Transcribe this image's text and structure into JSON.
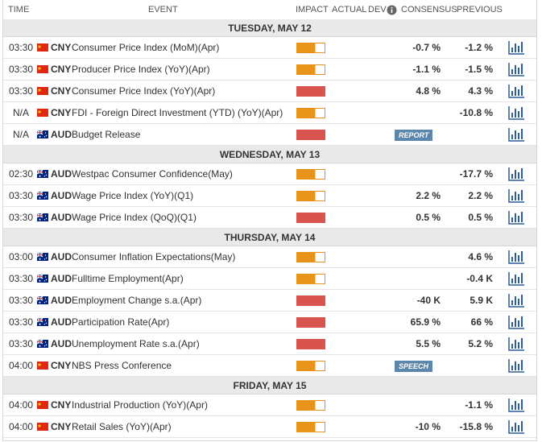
{
  "header": {
    "time": "TIME",
    "event": "EVENT",
    "impact": "IMPACT",
    "actual": "ACTUAL",
    "dev": "DEV",
    "consensus": "CONSENSUS",
    "previous": "PREVIOUS"
  },
  "days": [
    {
      "label": "TUESDAY, MAY 12",
      "rows": [
        {
          "time": "03:30",
          "flag": "cn",
          "currency": "CNY",
          "event": "Consumer Price Index (MoM)(Apr)",
          "impact": "medium",
          "consensus": "-0.7 %",
          "previous": "-1.2 %"
        },
        {
          "time": "03:30",
          "flag": "cn",
          "currency": "CNY",
          "event": "Producer Price Index (YoY)(Apr)",
          "impact": "medium",
          "consensus": "-1.1 %",
          "previous": "-1.5 %"
        },
        {
          "time": "03:30",
          "flag": "cn",
          "currency": "CNY",
          "event": "Consumer Price Index (YoY)(Apr)",
          "impact": "high",
          "consensus": "4.8 %",
          "previous": "4.3 %"
        },
        {
          "time": "N/A",
          "flag": "cn",
          "currency": "CNY",
          "event": "FDI - Foreign Direct Investment (YTD) (YoY)(Apr)",
          "impact": "medium",
          "previous": "-10.8 %"
        },
        {
          "time": "N/A",
          "flag": "au",
          "currency": "AUD",
          "event": "Budget Release",
          "impact": "high",
          "badge": "REPORT"
        }
      ]
    },
    {
      "label": "WEDNESDAY, MAY 13",
      "rows": [
        {
          "time": "02:30",
          "flag": "au",
          "currency": "AUD",
          "event": "Westpac Consumer Confidence(May)",
          "impact": "medium",
          "previous": "-17.7 %"
        },
        {
          "time": "03:30",
          "flag": "au",
          "currency": "AUD",
          "event": "Wage Price Index (YoY)(Q1)",
          "impact": "medium",
          "consensus": "2.2 %",
          "previous": "2.2 %"
        },
        {
          "time": "03:30",
          "flag": "au",
          "currency": "AUD",
          "event": "Wage Price Index (QoQ)(Q1)",
          "impact": "high",
          "consensus": "0.5 %",
          "previous": "0.5 %"
        }
      ]
    },
    {
      "label": "THURSDAY, MAY 14",
      "rows": [
        {
          "time": "03:00",
          "flag": "au",
          "currency": "AUD",
          "event": "Consumer Inflation Expectations(May)",
          "impact": "medium",
          "previous": "4.6 %"
        },
        {
          "time": "03:30",
          "flag": "au",
          "currency": "AUD",
          "event": "Fulltime Employment(Apr)",
          "impact": "medium",
          "previous": "-0.4 K"
        },
        {
          "time": "03:30",
          "flag": "au",
          "currency": "AUD",
          "event": "Employment Change s.a.(Apr)",
          "impact": "high",
          "consensus": "-40 K",
          "previous": "5.9 K"
        },
        {
          "time": "03:30",
          "flag": "au",
          "currency": "AUD",
          "event": "Participation Rate(Apr)",
          "impact": "high",
          "consensus": "65.9 %",
          "previous": "66 %"
        },
        {
          "time": "03:30",
          "flag": "au",
          "currency": "AUD",
          "event": "Unemployment Rate s.a.(Apr)",
          "impact": "high",
          "consensus": "5.5 %",
          "previous": "5.2 %"
        },
        {
          "time": "04:00",
          "flag": "cn",
          "currency": "CNY",
          "event": "NBS Press Conference",
          "impact": "medium",
          "badge": "SPEECH"
        }
      ]
    },
    {
      "label": "FRIDAY, MAY 15",
      "rows": [
        {
          "time": "04:00",
          "flag": "cn",
          "currency": "CNY",
          "event": "Industrial Production (YoY)(Apr)",
          "impact": "medium",
          "previous": "-1.1 %"
        },
        {
          "time": "04:00",
          "flag": "cn",
          "currency": "CNY",
          "event": "Retail Sales (YoY)(Apr)",
          "impact": "medium",
          "consensus": "-10 %",
          "previous": "-15.8 %"
        }
      ]
    }
  ]
}
